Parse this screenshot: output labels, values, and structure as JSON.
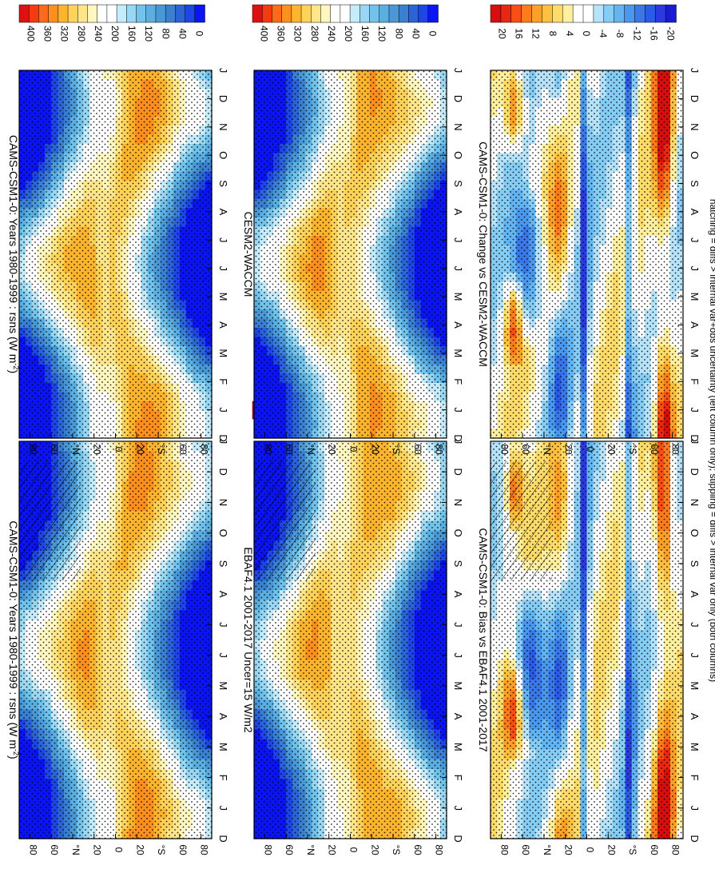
{
  "figure": {
    "footnote": "hatching = diffs > internal var+obs uncertainty (left column only); stippling = diffs > internal var only (both columns)"
  },
  "colors": {
    "clim_scale": [
      "#0a14f5",
      "#1e46e6",
      "#2a64d6",
      "#3a7fd0",
      "#4a98d6",
      "#5aaee0",
      "#72c3eb",
      "#9ad7f2",
      "#c6ebfa",
      "#ffffff",
      "#ffffff",
      "#fff6c0",
      "#ffe68a",
      "#ffd25a",
      "#ffb42e",
      "#ff9020",
      "#ff6a18",
      "#f53a12",
      "#e01010"
    ],
    "diff_scale": [
      "#1a1ad0",
      "#2a3ae0",
      "#2a5ae6",
      "#3a78e8",
      "#4a98ee",
      "#62b4f2",
      "#86cdf5",
      "#b6e3fa",
      "#ffffff",
      "#ffffff",
      "#fff0a0",
      "#ffdc6a",
      "#ffc040",
      "#ffa028",
      "#ff7c1c",
      "#f85014",
      "#e82810",
      "#d80e0e"
    ],
    "axis": "#000000"
  },
  "chart_data": [
    {
      "type": "heatmap",
      "panel": "top-left",
      "title": "CAMS-CSM1-0: Years 1980-1999 : rsns (W m",
      "title_sup": "-2",
      "title_end": ")",
      "x_tick_labels": [
        "D",
        "J",
        "F",
        "M",
        "A",
        "M",
        "J",
        "J",
        "A",
        "S",
        "O",
        "N",
        "D",
        "J"
      ],
      "y_tick_labels": [
        "80",
        "60",
        "°N",
        "20",
        "0",
        "20",
        "°S",
        "60",
        "80"
      ],
      "y_range": [
        -90,
        90
      ],
      "x_range": [
        0,
        14
      ],
      "colorbar_labels": [
        "0",
        "40",
        "80",
        "120",
        "160",
        "200",
        "240",
        "280",
        "320",
        "360",
        "400"
      ],
      "colorbar_range": [
        0,
        420
      ],
      "value_type": "clim",
      "hatched": true
    },
    {
      "type": "heatmap",
      "panel": "top-right",
      "title": "CAMS-CSM1-0: Years 1980-1999 : rsns (W m",
      "title_sup": "-2",
      "title_end": ")",
      "x_tick_labels": [
        "D",
        "J",
        "F",
        "M",
        "A",
        "M",
        "J",
        "J",
        "A",
        "S",
        "O",
        "N",
        "D",
        "J"
      ],
      "y_tick_labels": [
        "80",
        "60",
        "°N",
        "20",
        "0",
        "20",
        "°S",
        "60",
        "80"
      ],
      "y_range": [
        -90,
        90
      ],
      "x_range": [
        0,
        14
      ],
      "colorbar_labels": [
        "0",
        "40",
        "80",
        "120",
        "160",
        "200",
        "240",
        "280",
        "320",
        "360",
        "400"
      ],
      "colorbar_range": [
        0,
        420
      ],
      "value_type": "clim",
      "hatched": false
    },
    {
      "type": "heatmap",
      "panel": "middle-left",
      "title": "EBAF4.1 2001-2017 Uncer=15 W/m2",
      "x_tick_labels": [
        "D",
        "J",
        "F",
        "M",
        "A",
        "M",
        "J",
        "J",
        "A",
        "S",
        "O",
        "N",
        "D",
        "J"
      ],
      "y_tick_labels": [
        "80",
        "60",
        "°N",
        "20",
        "0",
        "20",
        "°S",
        "60",
        "80"
      ],
      "y_range": [
        -90,
        90
      ],
      "x_range": [
        0,
        14
      ],
      "colorbar_labels": [
        "0",
        "40",
        "80",
        "120",
        "160",
        "200",
        "240",
        "280",
        "320",
        "360",
        "400"
      ],
      "colorbar_range": [
        0,
        420
      ],
      "value_type": "clim",
      "hatched": true
    },
    {
      "type": "heatmap",
      "panel": "middle-right",
      "title": "CESM2-WACCM",
      "x_tick_labels": [
        "D",
        "J",
        "F",
        "M",
        "A",
        "M",
        "J",
        "J",
        "A",
        "S",
        "O",
        "N",
        "D",
        "J"
      ],
      "y_tick_labels": [
        "80",
        "60",
        "°N",
        "20",
        "0",
        "20",
        "°S",
        "60",
        "80"
      ],
      "y_range": [
        -90,
        90
      ],
      "x_range": [
        0,
        14
      ],
      "colorbar_labels": [
        "0",
        "40",
        "80",
        "120",
        "160",
        "200",
        "240",
        "280",
        "320",
        "360",
        "400"
      ],
      "colorbar_range": [
        0,
        420
      ],
      "value_type": "clim",
      "hatched": false
    },
    {
      "type": "heatmap",
      "panel": "bottom-left",
      "title": "CAMS-CSM1-0: Bias vs EBAF4.1 2001-2017",
      "x_tick_labels": [
        "D",
        "J",
        "F",
        "M",
        "A",
        "M",
        "J",
        "J",
        "A",
        "S",
        "O",
        "N",
        "D",
        "J"
      ],
      "y_tick_labels": [
        "80",
        "60",
        "°N",
        "20",
        "0",
        "20",
        "°S",
        "60",
        "80"
      ],
      "y_range": [
        -90,
        90
      ],
      "x_range": [
        0,
        14
      ],
      "colorbar_labels": [
        "-20",
        "-16",
        "-12",
        "-8",
        "-4",
        "0",
        "4",
        "8",
        "12",
        "16",
        "20"
      ],
      "colorbar_range": [
        -22,
        22
      ],
      "value_type": "diff",
      "hatched": true
    },
    {
      "type": "heatmap",
      "panel": "bottom-right",
      "title": "CAMS-CSM1-0: Change vs CESM2-WACCM",
      "x_tick_labels": [
        "D",
        "J",
        "F",
        "M",
        "A",
        "M",
        "J",
        "J",
        "A",
        "S",
        "O",
        "N",
        "D",
        "J"
      ],
      "y_tick_labels": [
        "80",
        "60",
        "°N",
        "20",
        "0",
        "20",
        "°S",
        "60",
        "80"
      ],
      "y_range": [
        -90,
        90
      ],
      "x_range": [
        0,
        14
      ],
      "colorbar_labels": [
        "-20",
        "-16",
        "-12",
        "-8",
        "-4",
        "0",
        "4",
        "8",
        "12",
        "16",
        "20"
      ],
      "colorbar_range": [
        -22,
        22
      ],
      "value_type": "diff",
      "hatched": false
    }
  ]
}
